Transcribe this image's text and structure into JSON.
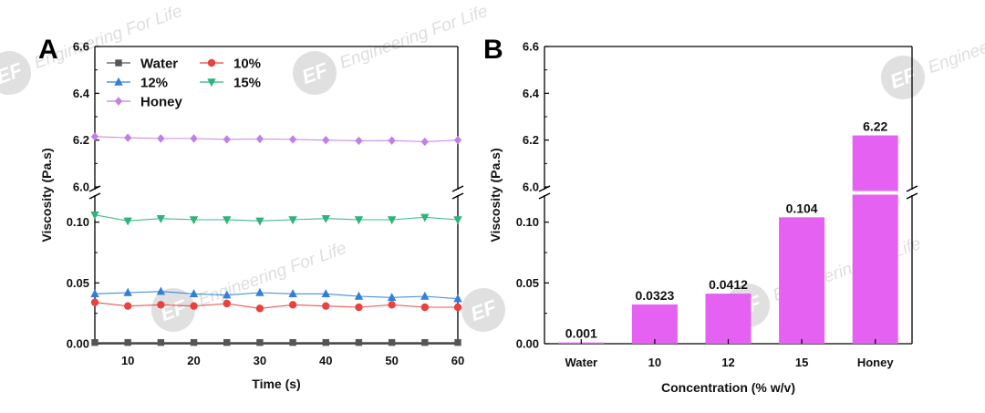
{
  "panels": {
    "a": "A",
    "b": "B"
  },
  "watermark": {
    "logo": "EF",
    "text": "Engineering For Life"
  },
  "colors": {
    "water": "#555555",
    "c10": "#e8413f",
    "c12": "#2f7fdc",
    "c15": "#2eb37b",
    "honey": "#c27fe8",
    "bar": "#e561f2",
    "axis": "#000000"
  },
  "chart_data": [
    {
      "type": "line",
      "panel": "A",
      "title": "",
      "xlabel": "Time (s)",
      "ylabel": "Viscosity (Pa.s)",
      "xlim": [
        5,
        60
      ],
      "xticks": [
        "10",
        "20",
        "30",
        "40",
        "50",
        "60"
      ],
      "ylim_lower": [
        0,
        0.12
      ],
      "ylim_upper": [
        6.0,
        6.6
      ],
      "yticks_lower": [
        "0.00",
        "0.05",
        "0.10"
      ],
      "yticks_upper": [
        "6.0",
        "6.2",
        "6.4",
        "6.6"
      ],
      "x": [
        5,
        10,
        15,
        20,
        25,
        30,
        35,
        40,
        45,
        50,
        55,
        60
      ],
      "legend": [
        "Water",
        "10%",
        "12%",
        "15%",
        "Honey"
      ],
      "series": [
        {
          "name": "Water",
          "marker": "square",
          "color": "#555555",
          "values": [
            0.001,
            0.001,
            0.001,
            0.001,
            0.001,
            0.001,
            0.001,
            0.001,
            0.001,
            0.001,
            0.001,
            0.001
          ]
        },
        {
          "name": "10%",
          "marker": "circle",
          "color": "#e8413f",
          "values": [
            0.034,
            0.031,
            0.032,
            0.031,
            0.033,
            0.029,
            0.032,
            0.031,
            0.03,
            0.032,
            0.03,
            0.03
          ]
        },
        {
          "name": "12%",
          "marker": "triangle-up",
          "color": "#2f7fdc",
          "values": [
            0.041,
            0.042,
            0.043,
            0.041,
            0.04,
            0.042,
            0.041,
            0.041,
            0.039,
            0.038,
            0.039,
            0.037
          ]
        },
        {
          "name": "15%",
          "marker": "triangle-down",
          "color": "#2eb37b",
          "values": [
            0.106,
            0.101,
            0.103,
            0.102,
            0.102,
            0.101,
            0.102,
            0.103,
            0.102,
            0.102,
            0.104,
            0.102
          ]
        },
        {
          "name": "Honey",
          "marker": "diamond",
          "color": "#c27fe8",
          "values": [
            6.215,
            6.21,
            6.207,
            6.207,
            6.203,
            6.205,
            6.203,
            6.2,
            6.197,
            6.198,
            6.193,
            6.2
          ]
        }
      ]
    },
    {
      "type": "bar",
      "panel": "B",
      "title": "",
      "xlabel": "Concentration (% w/v)",
      "ylabel": "Viscosity (Pa.s)",
      "ylim_lower": [
        0,
        0.12
      ],
      "ylim_upper": [
        6.0,
        6.6
      ],
      "yticks_lower": [
        "0.00",
        "0.05",
        "0.10"
      ],
      "yticks_upper": [
        "6.0",
        "6.2",
        "6.4",
        "6.6"
      ],
      "categories": [
        "Water",
        "10",
        "12",
        "15",
        "Honey"
      ],
      "values": [
        0.001,
        0.0323,
        0.0412,
        0.104,
        6.22
      ],
      "labels": [
        "0.001",
        "0.0323",
        "0.0412",
        "0.104",
        "6.22"
      ]
    }
  ]
}
